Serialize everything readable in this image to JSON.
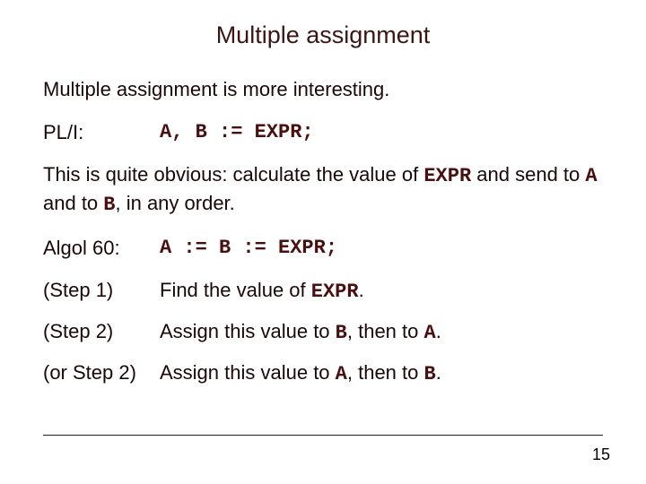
{
  "title": "Multiple assignment",
  "intro": "Multiple assignment is more interesting.",
  "pli": {
    "label": "PL/I:",
    "code": "A, B := EXPR;"
  },
  "explain": {
    "part1": "This is quite obvious: calculate the value of ",
    "code1": "EXPR",
    "part2": " and send to ",
    "code2": "A",
    "part3": " and to ",
    "code3": "B",
    "part4": ", in any order."
  },
  "algol": {
    "label": "Algol 60:",
    "code": "A := B := EXPR;"
  },
  "step1": {
    "label": "(Step 1)",
    "text1": "Find the value of ",
    "code": "EXPR",
    "text2": "."
  },
  "step2": {
    "label": "(Step 2)",
    "text1": "Assign this value to ",
    "code1": "B",
    "text2": ", then to ",
    "code2": "A",
    "text3": "."
  },
  "step2alt": {
    "label": "(or Step 2)",
    "text1": "Assign this value to ",
    "code1": "A",
    "text2": ", then to ",
    "code2": "B",
    "text3": "."
  },
  "pageNumber": "15"
}
